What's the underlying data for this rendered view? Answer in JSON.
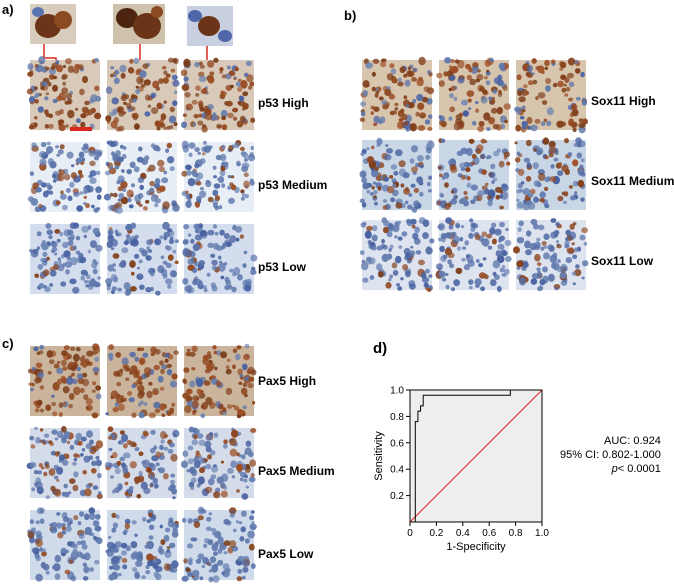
{
  "panels": {
    "a": {
      "letter": "a)",
      "rows": [
        "p53 High",
        "p53 Medium",
        "p53 Low"
      ]
    },
    "b": {
      "letter": "b)",
      "rows": [
        "Sox11 High",
        "Sox11 Medium",
        "Sox11 Low"
      ]
    },
    "c": {
      "letter": "c)",
      "rows": [
        "Pax5 High",
        "Pax5 Medium",
        "Pax5 Low"
      ]
    },
    "d": {
      "letter": "d)",
      "stats": {
        "auc": "AUC: 0.924",
        "ci": "95% CI: 0.802-1.000",
        "p_prefix": "p",
        "p_rest": "< 0.0001"
      }
    }
  },
  "colors": {
    "brown_stain": "#8a4a22",
    "blue_counterstain": "#5a73b0",
    "background_light": "#dbe3ef",
    "roc_curve": "#000000",
    "reference_line": "#e0261e",
    "plot_fill": "#eeeeee",
    "arrow": "#d9281e"
  },
  "chart_data": {
    "type": "line",
    "title": "",
    "xlabel": "1-Specificity",
    "ylabel": "Sensitivity",
    "xlim": [
      0,
      1.0
    ],
    "ylim": [
      0,
      1.0
    ],
    "x_ticks": [
      "0",
      "0.2",
      "0.4",
      "0.6",
      "0.8",
      "1.0"
    ],
    "y_ticks": [
      "0.2",
      "0.4",
      "0.6",
      "0.8",
      "1.0"
    ],
    "series": [
      {
        "name": "",
        "x": [
          0,
          0.04,
          0.04,
          0.06,
          0.06,
          0.08,
          0.08,
          0.1,
          0.1,
          0.16,
          0.16,
          0.76,
          0.76,
          1.0
        ],
        "y": [
          0,
          0.0,
          0.76,
          0.76,
          0.84,
          0.84,
          0.88,
          0.88,
          0.96,
          0.96,
          0.96,
          0.96,
          1.0,
          1.0
        ]
      },
      {
        "name": "",
        "x": [
          0,
          1.0
        ],
        "y": [
          0,
          1.0
        ]
      }
    ],
    "grid": false,
    "legend": "none"
  }
}
